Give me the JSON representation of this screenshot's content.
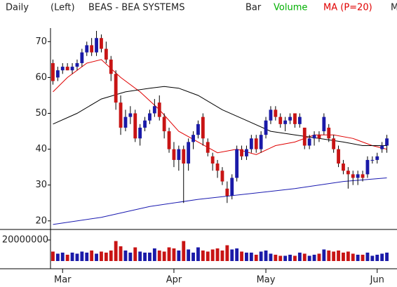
{
  "chart_data": {
    "type": "candlestick",
    "header": {
      "period": "Daily",
      "scale": "(Left)",
      "title": "BEAS - BEA SYSTEMS",
      "style": "Bar",
      "volume": "Volume",
      "ma": "MA (P=20)",
      "more": "M"
    },
    "header_colors": {
      "volume": "#00b000",
      "ma": "#e00000"
    },
    "x": [
      0,
      1,
      2,
      3,
      4,
      5,
      6,
      7,
      8,
      9,
      10,
      11,
      12,
      13,
      14,
      15,
      16,
      17,
      18,
      19,
      20,
      21,
      22,
      23,
      24,
      25,
      26,
      27,
      28,
      29,
      30,
      31,
      32,
      33,
      34,
      35,
      36,
      37,
      38,
      39,
      40,
      41,
      42,
      43,
      44,
      45,
      46,
      47,
      48,
      49,
      50,
      51,
      52,
      53,
      54,
      55,
      56,
      57,
      58,
      59,
      60,
      61,
      62,
      63,
      64,
      65,
      66,
      67,
      68,
      69
    ],
    "open": [
      64,
      60,
      62,
      63,
      62,
      63,
      64,
      67,
      69,
      67,
      71,
      68,
      65,
      61,
      53,
      46,
      49,
      50,
      43,
      46,
      48,
      50,
      53,
      49,
      45,
      40,
      37,
      40,
      36,
      42,
      44,
      49,
      42,
      38,
      36,
      34,
      29,
      27,
      32,
      40,
      38,
      40,
      43,
      40,
      44,
      48,
      51,
      49,
      47,
      48,
      50,
      47,
      46,
      41,
      43,
      44,
      45,
      46,
      43,
      40,
      36,
      34,
      33,
      32,
      33,
      33,
      37,
      37,
      40,
      41
    ],
    "high": [
      65,
      63,
      64,
      64,
      64,
      65,
      68,
      70,
      71,
      73,
      72,
      70,
      66,
      62,
      55,
      51,
      52,
      51,
      47,
      49,
      51,
      54,
      55,
      50,
      46,
      42,
      41,
      41,
      43,
      45,
      48,
      50,
      43,
      39,
      37,
      35,
      31,
      33,
      41,
      41,
      41,
      44,
      44,
      45,
      49,
      52,
      52,
      50,
      49,
      50,
      50,
      50,
      46,
      44,
      45,
      45,
      50,
      47,
      44,
      41,
      37,
      35,
      34,
      34,
      34,
      38,
      38,
      39,
      42,
      44
    ],
    "low": [
      58,
      59,
      61,
      62,
      61,
      62,
      63,
      66,
      66,
      66,
      67,
      64,
      59,
      51,
      44,
      45,
      47,
      42,
      41,
      45,
      47,
      49,
      48,
      43,
      39,
      35,
      34,
      25,
      34,
      40,
      43,
      41,
      38,
      34,
      32,
      30,
      25,
      26,
      31,
      37,
      37,
      39,
      39,
      39,
      43,
      47,
      48,
      46,
      45,
      47,
      46,
      46,
      40,
      40,
      41,
      42,
      44,
      42,
      39,
      35,
      33,
      29,
      30,
      30,
      31,
      32,
      36,
      36,
      39,
      39
    ],
    "close": [
      59,
      62,
      63,
      62,
      63,
      64,
      67,
      69,
      67,
      71,
      68,
      65,
      61,
      53,
      46,
      49,
      50,
      43,
      46,
      48,
      50,
      52,
      49,
      45,
      40,
      37,
      40,
      36,
      42,
      44,
      47,
      43,
      39,
      36,
      34,
      31,
      27,
      32,
      40,
      38,
      40,
      43,
      40,
      44,
      48,
      51,
      49,
      47,
      48,
      49,
      47,
      49,
      41,
      43,
      44,
      43,
      49,
      43,
      40,
      36,
      34,
      33,
      32,
      33,
      32,
      37,
      37,
      38,
      41,
      43
    ],
    "volume": [
      9000000,
      7000000,
      8000000,
      6000000,
      8000000,
      7000000,
      9000000,
      8000000,
      10000000,
      7000000,
      9000000,
      8000000,
      10000000,
      19000000,
      14000000,
      10000000,
      8000000,
      13000000,
      9000000,
      8000000,
      8000000,
      12000000,
      10000000,
      9000000,
      13000000,
      12000000,
      10000000,
      19000000,
      11000000,
      8000000,
      13000000,
      10000000,
      9000000,
      11000000,
      12000000,
      10000000,
      15000000,
      11000000,
      12000000,
      9000000,
      8000000,
      8000000,
      6000000,
      9000000,
      10000000,
      7000000,
      6000000,
      5000000,
      5000000,
      6000000,
      5000000,
      8000000,
      7000000,
      5000000,
      6000000,
      7000000,
      11000000,
      10000000,
      9000000,
      10000000,
      8000000,
      9000000,
      7000000,
      6000000,
      6000000,
      8000000,
      5000000,
      6000000,
      7000000,
      8000000
    ],
    "up_color": "#1a1aa8",
    "down_color": "#c81414",
    "lines": [
      {
        "name": "MA (P=20)",
        "color": "#e00000",
        "x": [
          0,
          3,
          7,
          10,
          14,
          18,
          22,
          26,
          30,
          34,
          38,
          42,
          46,
          50,
          54,
          58,
          62,
          66,
          69
        ],
        "values": [
          56,
          60,
          64,
          65,
          60,
          56,
          51,
          45,
          42,
          39,
          40,
          38.5,
          41,
          42,
          44,
          44,
          43,
          41,
          40
        ]
      },
      {
        "color": "#000000",
        "x": [
          0,
          5,
          10,
          15,
          20,
          23,
          26,
          30,
          35,
          40,
          45,
          50,
          55,
          60,
          64,
          69
        ],
        "values": [
          47,
          50,
          54,
          56,
          57,
          57.5,
          57,
          55,
          51,
          48,
          45,
          44,
          43,
          42,
          41,
          41
        ]
      },
      {
        "color": "#1a1ab0",
        "x": [
          0,
          10,
          20,
          30,
          40,
          50,
          60,
          69
        ],
        "values": [
          19,
          21,
          24,
          26,
          27.5,
          29,
          31,
          32
        ]
      }
    ],
    "xlim": [
      -0.5,
      69.5
    ],
    "xticks": [
      {
        "value": 2,
        "label": "Mar"
      },
      {
        "value": 25,
        "label": "Apr"
      },
      {
        "value": 44,
        "label": "May"
      },
      {
        "value": 67,
        "label": "Jun"
      }
    ],
    "ylim": [
      18,
      73
    ],
    "yticks": [
      20,
      30,
      40,
      50,
      60,
      70
    ],
    "vlim": [
      0,
      28000000
    ],
    "vticks": [
      20000000
    ]
  }
}
